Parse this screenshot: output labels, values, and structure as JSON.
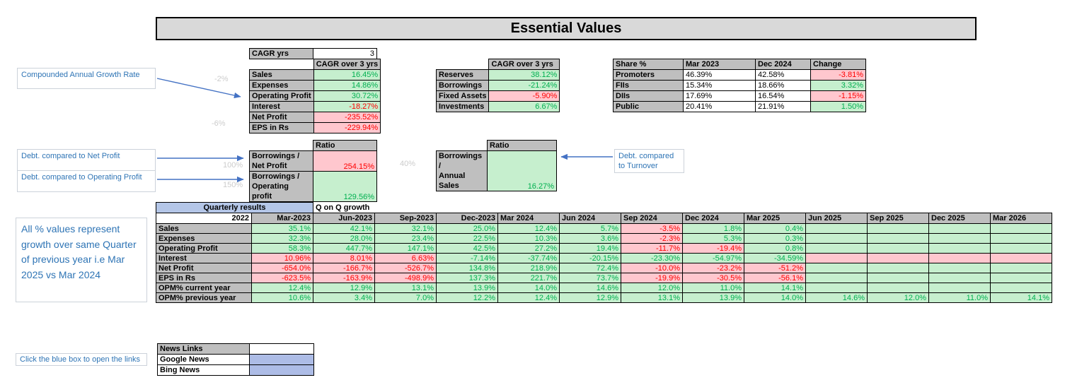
{
  "title": "Essential Values",
  "cagr_config": {
    "label": "CAGR yrs",
    "value": "3"
  },
  "cagr_table": {
    "header": "CAGR over 3 yrs",
    "rows": [
      {
        "label": "Sales",
        "value": "16.45%",
        "status": "good"
      },
      {
        "label": "Expenses",
        "value": "14.86%",
        "status": "good"
      },
      {
        "label": "Operating Profit",
        "value": "30.72%",
        "status": "good"
      },
      {
        "label": "Interest",
        "value": "-18.27%",
        "status": "good-red"
      },
      {
        "label": "Net Profit",
        "value": "-235.52%",
        "status": "bad"
      },
      {
        "label": "EPS in Rs",
        "value": "-229.94%",
        "status": "bad"
      }
    ]
  },
  "balance_table": {
    "header": "CAGR over 3 yrs",
    "rows": [
      {
        "label": "Reserves",
        "value": "38.12%",
        "status": "good"
      },
      {
        "label": "Borrowings",
        "value": "-21.24%",
        "status": "good"
      },
      {
        "label": "Fixed Assets",
        "value": "-5.90%",
        "status": "bad"
      },
      {
        "label": "Investments",
        "value": "6.67%",
        "status": "good"
      }
    ]
  },
  "share_table": {
    "headers": [
      "Share %",
      "Mar 2023",
      "Dec 2024",
      "Change"
    ],
    "rows": [
      {
        "label": "Promoters",
        "mar_2023": "46.39%",
        "dec_2024": "42.58%",
        "change": "-3.81%",
        "status": "bad"
      },
      {
        "label": "FIIs",
        "mar_2023": "15.34%",
        "dec_2024": "18.66%",
        "change": "3.32%",
        "status": "good"
      },
      {
        "label": "DIIs",
        "mar_2023": "17.69%",
        "dec_2024": "16.54%",
        "change": "-1.15%",
        "status": "bad"
      },
      {
        "label": "Public",
        "mar_2023": "20.41%",
        "dec_2024": "21.91%",
        "change": "1.50%",
        "status": "good"
      }
    ]
  },
  "ratio_table_left": {
    "header": "Ratio",
    "rows": [
      {
        "label": "Borrowings /\nNet Profit",
        "value": "254.15%",
        "status": "bad"
      },
      {
        "label": "Borrowings /\nOperating profit",
        "value": "129.56%",
        "status": "good"
      }
    ]
  },
  "ratio_table_mid": {
    "header": "Ratio",
    "rows": [
      {
        "label": "Borrowings /\nAnnual Sales",
        "value": "16.27%",
        "status": "good"
      }
    ]
  },
  "quarterly_table": {
    "group_header": "Quarterly results",
    "growth_header": "Q on Q growth",
    "base_year": "2022",
    "quarters": [
      "Mar-2023",
      "Jun-2023",
      "Sep-2023",
      "Dec-2023",
      "Mar 2024",
      "Jun 2024",
      "Sep 2024",
      "Dec 2024",
      "Mar 2025",
      "Jun 2025",
      "Sep 2025",
      "Dec 2025",
      "Mar 2026"
    ],
    "rows": [
      {
        "label": "Sales",
        "cells": [
          [
            "35.1%",
            "good"
          ],
          [
            "42.1%",
            "good"
          ],
          [
            "32.1%",
            "good"
          ],
          [
            "25.0%",
            "good"
          ],
          [
            "12.4%",
            "good"
          ],
          [
            "5.7%",
            "good"
          ],
          [
            "-3.5%",
            "bad"
          ],
          [
            "1.8%",
            "good"
          ],
          [
            "0.4%",
            "good"
          ],
          [
            "",
            "good"
          ],
          [
            "",
            "good"
          ],
          [
            "",
            "good"
          ],
          [
            "",
            "good"
          ]
        ]
      },
      {
        "label": "Expenses",
        "cells": [
          [
            "32.3%",
            "good"
          ],
          [
            "28.0%",
            "good"
          ],
          [
            "23.4%",
            "good"
          ],
          [
            "22.5%",
            "good"
          ],
          [
            "10.3%",
            "good"
          ],
          [
            "3.6%",
            "good"
          ],
          [
            "-2.3%",
            "bad"
          ],
          [
            "5.3%",
            "good"
          ],
          [
            "0.3%",
            "good"
          ],
          [
            "",
            "good"
          ],
          [
            "",
            "good"
          ],
          [
            "",
            "good"
          ],
          [
            "",
            "good"
          ]
        ]
      },
      {
        "label": "Operating Profit",
        "cells": [
          [
            "58.3%",
            "good"
          ],
          [
            "447.7%",
            "good"
          ],
          [
            "147.1%",
            "good"
          ],
          [
            "42.5%",
            "good"
          ],
          [
            "27.2%",
            "good"
          ],
          [
            "19.4%",
            "good"
          ],
          [
            "-11.7%",
            "bad"
          ],
          [
            "-19.4%",
            "bad"
          ],
          [
            "0.8%",
            "good"
          ],
          [
            "",
            "good"
          ],
          [
            "",
            "good"
          ],
          [
            "",
            "good"
          ],
          [
            "",
            "good"
          ]
        ]
      },
      {
        "label": "Interest",
        "cells": [
          [
            "10.96%",
            "bad"
          ],
          [
            "8.01%",
            "bad"
          ],
          [
            "6.63%",
            "bad"
          ],
          [
            "-7.14%",
            "good"
          ],
          [
            "-37.74%",
            "good"
          ],
          [
            "-20.15%",
            "good"
          ],
          [
            "-23.30%",
            "good"
          ],
          [
            "-54.97%",
            "good"
          ],
          [
            "-34.59%",
            "good"
          ],
          [
            "",
            "bad"
          ],
          [
            "",
            "bad"
          ],
          [
            "",
            "bad"
          ],
          [
            "",
            "bad"
          ]
        ]
      },
      {
        "label": "Net Profit",
        "cells": [
          [
            "-654.0%",
            "bad"
          ],
          [
            "-166.7%",
            "bad"
          ],
          [
            "-526.7%",
            "bad"
          ],
          [
            "134.8%",
            "good"
          ],
          [
            "218.9%",
            "good"
          ],
          [
            "72.4%",
            "good"
          ],
          [
            "-10.0%",
            "bad"
          ],
          [
            "-23.2%",
            "bad"
          ],
          [
            "-51.2%",
            "bad"
          ],
          [
            "",
            "good"
          ],
          [
            "",
            "good"
          ],
          [
            "",
            "good"
          ],
          [
            "",
            "good"
          ]
        ]
      },
      {
        "label": "EPS in Rs",
        "cells": [
          [
            "-623.5%",
            "bad"
          ],
          [
            "-163.9%",
            "bad"
          ],
          [
            "-498.9%",
            "bad"
          ],
          [
            "137.3%",
            "good"
          ],
          [
            "221.7%",
            "good"
          ],
          [
            "73.7%",
            "good"
          ],
          [
            "-19.9%",
            "bad"
          ],
          [
            "-30.5%",
            "bad"
          ],
          [
            "-56.1%",
            "bad"
          ],
          [
            "",
            "good"
          ],
          [
            "",
            "good"
          ],
          [
            "",
            "good"
          ],
          [
            "",
            "good"
          ]
        ]
      },
      {
        "label": "OPM% current year",
        "cells": [
          [
            "12.4%",
            "good"
          ],
          [
            "12.9%",
            "good"
          ],
          [
            "13.1%",
            "good"
          ],
          [
            "13.9%",
            "good"
          ],
          [
            "14.0%",
            "good"
          ],
          [
            "14.6%",
            "good"
          ],
          [
            "12.0%",
            "good"
          ],
          [
            "11.0%",
            "good"
          ],
          [
            "14.1%",
            "good"
          ],
          [
            "",
            "good"
          ],
          [
            "",
            "good"
          ],
          [
            "",
            "good"
          ],
          [
            "",
            "good"
          ]
        ]
      },
      {
        "label": "OPM% previous year",
        "cells": [
          [
            "10.6%",
            "good"
          ],
          [
            "3.4%",
            "good"
          ],
          [
            "7.0%",
            "good"
          ],
          [
            "12.2%",
            "good"
          ],
          [
            "12.4%",
            "good"
          ],
          [
            "12.9%",
            "good"
          ],
          [
            "13.1%",
            "good"
          ],
          [
            "13.9%",
            "good"
          ],
          [
            "14.0%",
            "good"
          ],
          [
            "14.6%",
            "good"
          ],
          [
            "12.0%",
            "good"
          ],
          [
            "11.0%",
            "good"
          ],
          [
            "14.1%",
            "good"
          ]
        ]
      }
    ]
  },
  "news_table": {
    "header": "News Links",
    "rows": [
      {
        "label": "Google News"
      },
      {
        "label": "Bing News"
      }
    ]
  },
  "callouts": {
    "cagr_note": "Compounded Annual Growth Rate",
    "debt_net_profit": "Debt. compared to Net Profit",
    "debt_operating_profit": "Debt. compared to Operating Profit",
    "debt_turnover": "Debt. compared to Turnover",
    "quarterly_note": "All % values represent growth over same Quarter of previous year i.e Mar 2025 vs Mar 2024",
    "news_note": "Click the blue box to open the links"
  },
  "watermarks": [
    {
      "text": "-2%"
    },
    {
      "text": "-6%"
    },
    {
      "text": "100%"
    },
    {
      "text": "150%"
    },
    {
      "text": "40%"
    }
  ],
  "colors": {
    "positive_fill": "#c6efce",
    "positive_text": "#00b050",
    "negative_fill": "#ffc7ce",
    "negative_text": "#ff0000",
    "header_fill": "#bfbfbf",
    "title_fill": "#d9d9d9",
    "quarterly_header_fill": "#b4c6e7",
    "link_box_fill": "#adbce6",
    "callout_text": "#2e74b5",
    "arrow": "#4472c4"
  }
}
